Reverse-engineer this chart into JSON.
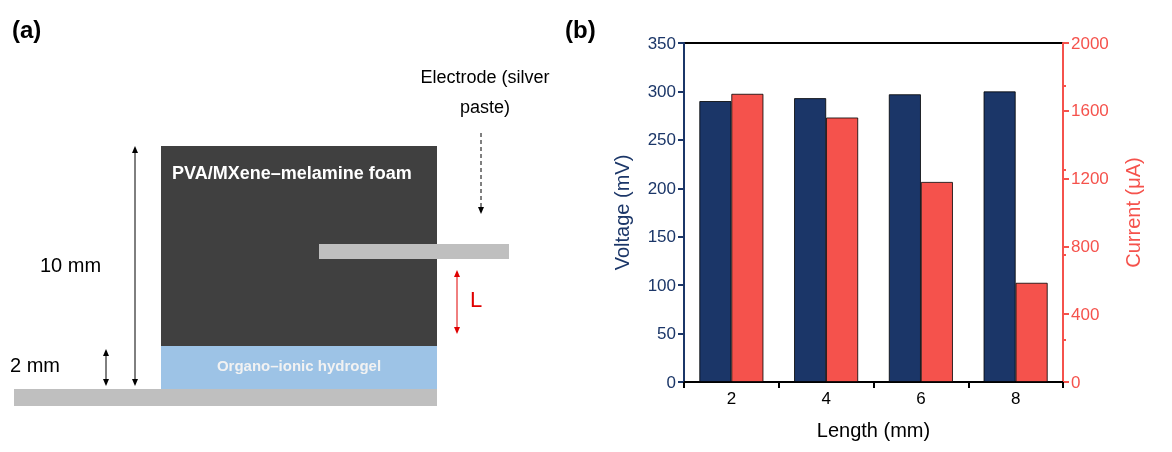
{
  "chart_data": [
    {
      "type": "other",
      "title": "(a)",
      "annotations": [
        "Electrode (silver paste)",
        "PVA/MXene–melamine foam",
        "10 mm",
        "L",
        "2 mm",
        "Organo–ionic hydrogel"
      ]
    },
    {
      "type": "bar",
      "title": "(b)",
      "categories": [
        "2",
        "4",
        "6",
        "8"
      ],
      "series": [
        {
          "color": "#1b3668",
          "values": [
            290,
            293,
            297,
            300
          ]
        },
        {
          "color": "#f5524c",
          "values": [
            1700,
            1560,
            1180,
            585
          ],
          "axis": "y2"
        }
      ],
      "xlabel": "Length (mm)",
      "ylabel": "Voltage (mV)",
      "y2label": "Current (μA)",
      "ylim": [
        0,
        350
      ],
      "yticks": [
        0,
        50,
        100,
        150,
        200,
        250,
        300,
        350
      ],
      "y2lim": [
        0,
        2000
      ],
      "y2ticks": [
        0,
        400,
        800,
        1200,
        1600,
        2000
      ]
    }
  ]
}
